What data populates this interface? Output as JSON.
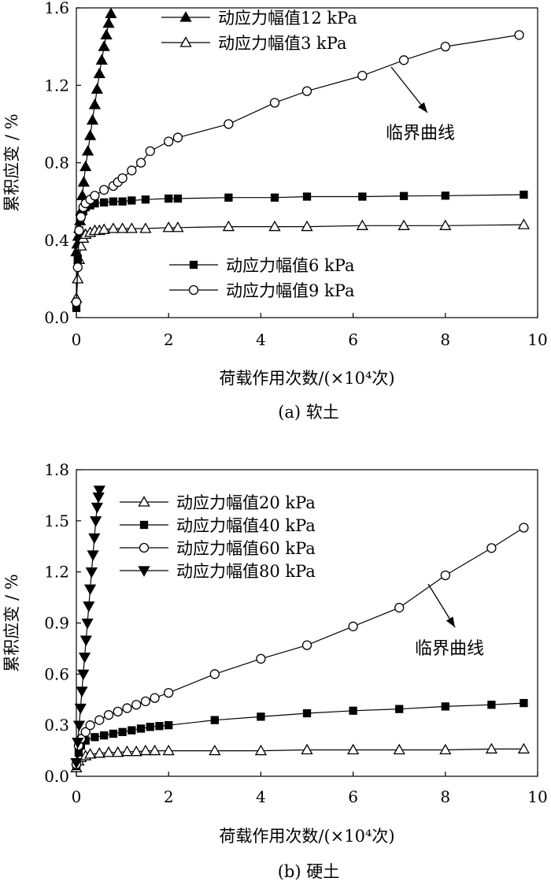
{
  "chart_data": [
    {
      "type": "line",
      "caption": "(a) 软土",
      "xlabel": "荷载作用次数/(×10⁴次)",
      "ylabel": "累积应变 / %",
      "xlim": [
        0,
        10
      ],
      "ylim": [
        0,
        1.6
      ],
      "xticks": [
        "0",
        "2",
        "4",
        "6",
        "8",
        "10"
      ],
      "yticks": [
        "0.0",
        "0.4",
        "0.8",
        "1.2",
        "1.6"
      ],
      "grid": false,
      "legend": [
        {
          "location": "top-left",
          "entries": [
            "动应力幅值12 kPa",
            "动应力幅值3 kPa"
          ]
        },
        {
          "location": "middle",
          "entries": [
            "动应力幅值6 kPa",
            "动应力幅值9 kPa"
          ]
        }
      ],
      "annotation": {
        "text": "临界曲线",
        "points_to": "动应力幅值9 kPa"
      },
      "series": [
        {
          "name": "动应力幅值12 kPa",
          "marker": "triangle-up-filled",
          "x": [
            0,
            0.02,
            0.04,
            0.06,
            0.08,
            0.1,
            0.13,
            0.16,
            0.2,
            0.25,
            0.3,
            0.35,
            0.4,
            0.45,
            0.5,
            0.55,
            0.6,
            0.65,
            0.7,
            0.75
          ],
          "y": [
            0.34,
            0.38,
            0.42,
            0.46,
            0.5,
            0.55,
            0.63,
            0.7,
            0.78,
            0.86,
            0.94,
            1.02,
            1.1,
            1.18,
            1.26,
            1.33,
            1.4,
            1.46,
            1.52,
            1.57
          ]
        },
        {
          "name": "动应力幅值3 kPa",
          "marker": "triangle-up-open",
          "x": [
            0,
            0.03,
            0.06,
            0.1,
            0.15,
            0.2,
            0.3,
            0.4,
            0.5,
            0.6,
            0.8,
            1.0,
            1.2,
            1.5,
            2.0,
            2.2,
            3.3,
            4.3,
            5.0,
            6.2,
            7.1,
            8.0,
            9.7
          ],
          "y": [
            0.1,
            0.2,
            0.3,
            0.37,
            0.41,
            0.43,
            0.44,
            0.45,
            0.45,
            0.455,
            0.46,
            0.46,
            0.46,
            0.46,
            0.465,
            0.465,
            0.47,
            0.47,
            0.47,
            0.475,
            0.475,
            0.475,
            0.48
          ]
        },
        {
          "name": "动应力幅值6 kPa",
          "marker": "square-filled",
          "x": [
            0,
            0.03,
            0.06,
            0.1,
            0.15,
            0.2,
            0.3,
            0.4,
            0.6,
            0.8,
            1.0,
            1.2,
            1.5,
            2.0,
            2.2,
            3.3,
            4.3,
            5.0,
            6.2,
            7.1,
            8.0,
            9.7
          ],
          "y": [
            0.05,
            0.3,
            0.45,
            0.52,
            0.55,
            0.57,
            0.58,
            0.59,
            0.595,
            0.6,
            0.6,
            0.605,
            0.61,
            0.615,
            0.615,
            0.62,
            0.62,
            0.625,
            0.625,
            0.628,
            0.63,
            0.635
          ]
        },
        {
          "name": "动应力幅值9 kPa",
          "marker": "circle-open",
          "x": [
            0,
            0.03,
            0.06,
            0.1,
            0.15,
            0.2,
            0.3,
            0.4,
            0.6,
            0.8,
            0.9,
            1.0,
            1.2,
            1.4,
            1.6,
            2.0,
            2.2,
            3.3,
            4.3,
            5.0,
            6.2,
            7.1,
            8.0,
            9.6
          ],
          "y": [
            0.08,
            0.26,
            0.45,
            0.52,
            0.57,
            0.59,
            0.61,
            0.63,
            0.66,
            0.68,
            0.7,
            0.72,
            0.76,
            0.8,
            0.86,
            0.91,
            0.93,
            1.0,
            1.11,
            1.17,
            1.25,
            1.33,
            1.4,
            1.46
          ]
        }
      ]
    },
    {
      "type": "line",
      "caption": "(b) 硬土",
      "xlabel": "荷载作用次数/(×10⁴次)",
      "ylabel": "累积应变 / %",
      "xlim": [
        0,
        10
      ],
      "ylim": [
        0,
        1.8
      ],
      "xticks": [
        "0",
        "2",
        "4",
        "6",
        "8",
        "10"
      ],
      "yticks": [
        "0.0",
        "0.3",
        "0.6",
        "0.9",
        "1.2",
        "1.5",
        "1.8"
      ],
      "grid": false,
      "legend": [
        {
          "location": "top-left",
          "entries": [
            "动应力幅值20 kPa",
            "动应力幅值40 kPa",
            "动应力幅值60 kPa",
            "动应力幅值80 kPa"
          ]
        }
      ],
      "annotation": {
        "text": "临界曲线",
        "points_to": "动应力幅值60 kPa"
      },
      "series": [
        {
          "name": "动应力幅值20 kPa",
          "marker": "triangle-up-open",
          "x": [
            0,
            0.05,
            0.1,
            0.2,
            0.3,
            0.5,
            0.7,
            0.9,
            1.1,
            1.3,
            1.5,
            1.7,
            2.0,
            3.0,
            4.0,
            5.0,
            6.0,
            7.0,
            8.0,
            9.0,
            9.7
          ],
          "y": [
            0.05,
            0.09,
            0.11,
            0.12,
            0.13,
            0.135,
            0.14,
            0.14,
            0.145,
            0.145,
            0.15,
            0.15,
            0.15,
            0.15,
            0.15,
            0.155,
            0.155,
            0.155,
            0.155,
            0.16,
            0.16
          ]
        },
        {
          "name": "动应力幅值40 kPa",
          "marker": "square-filled",
          "x": [
            0,
            0.05,
            0.1,
            0.2,
            0.4,
            0.6,
            0.8,
            1.0,
            1.2,
            1.4,
            1.6,
            1.8,
            2.0,
            3.0,
            4.0,
            5.0,
            6.0,
            7.0,
            8.0,
            9.0,
            9.7
          ],
          "y": [
            0.06,
            0.14,
            0.18,
            0.21,
            0.23,
            0.24,
            0.25,
            0.26,
            0.27,
            0.28,
            0.29,
            0.295,
            0.3,
            0.33,
            0.35,
            0.37,
            0.385,
            0.395,
            0.41,
            0.42,
            0.43
          ]
        },
        {
          "name": "动应力幅值60 kPa",
          "marker": "circle-open",
          "x": [
            0,
            0.05,
            0.1,
            0.2,
            0.3,
            0.5,
            0.7,
            0.9,
            1.1,
            1.3,
            1.5,
            1.7,
            2.0,
            3.0,
            4.0,
            5.0,
            6.0,
            7.0,
            8.0,
            9.0,
            9.7
          ],
          "y": [
            0.07,
            0.18,
            0.22,
            0.26,
            0.3,
            0.33,
            0.36,
            0.38,
            0.4,
            0.42,
            0.44,
            0.46,
            0.49,
            0.6,
            0.69,
            0.77,
            0.88,
            0.99,
            1.18,
            1.34,
            1.46
          ]
        },
        {
          "name": "动应力幅值80 kPa",
          "marker": "triangle-down-filled",
          "x": [
            0,
            0.03,
            0.06,
            0.09,
            0.12,
            0.15,
            0.18,
            0.21,
            0.24,
            0.27,
            0.3,
            0.33,
            0.36,
            0.39,
            0.42,
            0.45,
            0.48,
            0.5
          ],
          "y": [
            0.08,
            0.2,
            0.3,
            0.4,
            0.5,
            0.6,
            0.7,
            0.8,
            0.9,
            1.0,
            1.1,
            1.2,
            1.3,
            1.4,
            1.5,
            1.58,
            1.64,
            1.68
          ]
        }
      ]
    }
  ]
}
